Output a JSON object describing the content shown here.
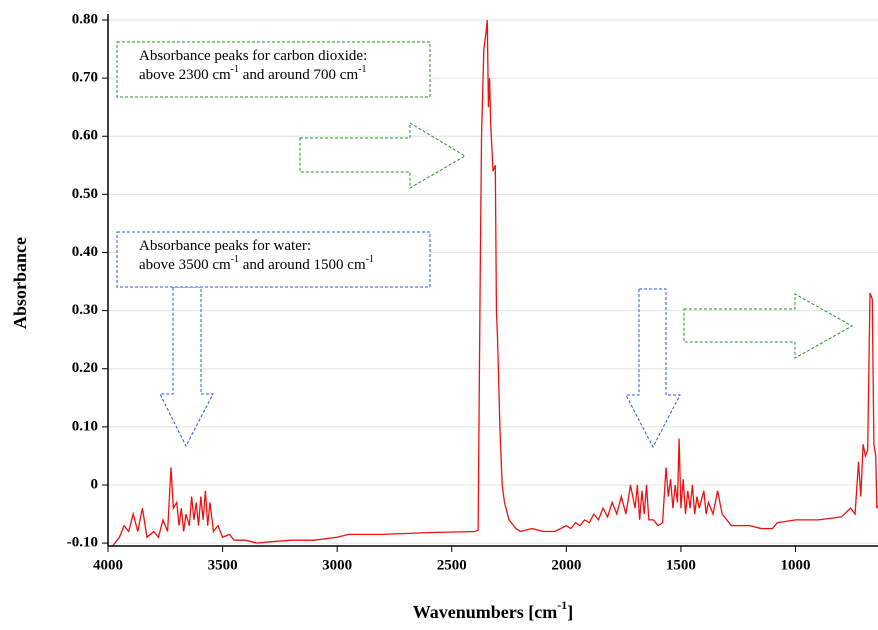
{
  "chart_data": {
    "type": "line",
    "ylabel": "Absorbance",
    "xlabel": [
      "Wavenumbers [cm",
      "-1",
      "]"
    ],
    "annotations": [
      {
        "lines": [
          [
            "Absorbance peaks for carbon dioxide:"
          ],
          [
            "above 2300 cm",
            "-1",
            " and around 700 cm",
            "-1"
          ]
        ],
        "color": "#2e8b2e"
      },
      {
        "lines": [
          [
            "Absorbance peaks for water:"
          ],
          [
            "above 3500 cm",
            "-1",
            " and around 1500 cm",
            "-1"
          ]
        ],
        "color": "#3355dd"
      }
    ],
    "color": "#ee1111",
    "x": [
      4000,
      3980,
      3950,
      3930,
      3910,
      3890,
      3870,
      3850,
      3830,
      3800,
      3780,
      3760,
      3740,
      3725,
      3715,
      3700,
      3690,
      3680,
      3670,
      3660,
      3645,
      3635,
      3625,
      3615,
      3605,
      3595,
      3585,
      3575,
      3565,
      3555,
      3540,
      3520,
      3500,
      3470,
      3450,
      3400,
      3350,
      3300,
      3200,
      3100,
      3000,
      2950,
      2800,
      2600,
      2400,
      2385,
      2375,
      2370,
      2360,
      2350,
      2345,
      2340,
      2335,
      2330,
      2320,
      2310,
      2305,
      2300,
      2290,
      2280,
      2270,
      2250,
      2220,
      2200,
      2150,
      2100,
      2050,
      2000,
      1980,
      1960,
      1940,
      1920,
      1900,
      1880,
      1860,
      1840,
      1820,
      1800,
      1780,
      1760,
      1740,
      1720,
      1700,
      1690,
      1680,
      1670,
      1660,
      1650,
      1640,
      1620,
      1600,
      1580,
      1565,
      1555,
      1545,
      1535,
      1525,
      1515,
      1508,
      1500,
      1490,
      1480,
      1470,
      1460,
      1450,
      1440,
      1430,
      1420,
      1400,
      1390,
      1380,
      1360,
      1340,
      1320,
      1300,
      1280,
      1250,
      1200,
      1150,
      1100,
      1080,
      1000,
      900,
      800,
      760,
      740,
      725,
      715,
      705,
      695,
      685,
      675,
      665,
      658,
      650,
      645,
      640
    ],
    "values": [
      -0.11,
      -0.105,
      -0.09,
      -0.07,
      -0.08,
      -0.05,
      -0.08,
      -0.04,
      -0.09,
      -0.08,
      -0.09,
      -0.06,
      -0.08,
      0.03,
      -0.04,
      -0.03,
      -0.07,
      -0.04,
      -0.08,
      -0.05,
      -0.07,
      -0.02,
      -0.06,
      -0.03,
      -0.07,
      -0.02,
      -0.06,
      -0.01,
      -0.07,
      -0.03,
      -0.08,
      -0.07,
      -0.09,
      -0.085,
      -0.095,
      -0.095,
      -0.1,
      -0.098,
      -0.095,
      -0.095,
      -0.09,
      -0.085,
      -0.085,
      -0.082,
      -0.08,
      -0.078,
      0.4,
      0.6,
      0.75,
      0.78,
      0.8,
      0.65,
      0.7,
      0.62,
      0.54,
      0.55,
      0.3,
      0.25,
      0.1,
      0.0,
      -0.03,
      -0.06,
      -0.075,
      -0.08,
      -0.075,
      -0.08,
      -0.08,
      -0.07,
      -0.075,
      -0.065,
      -0.07,
      -0.06,
      -0.065,
      -0.05,
      -0.06,
      -0.04,
      -0.055,
      -0.03,
      -0.05,
      -0.02,
      -0.05,
      0.0,
      -0.04,
      0.0,
      -0.06,
      -0.01,
      -0.05,
      0.0,
      -0.06,
      -0.06,
      -0.07,
      -0.065,
      0.03,
      -0.02,
      0.01,
      -0.04,
      0.0,
      -0.03,
      0.08,
      -0.04,
      0.01,
      -0.05,
      -0.01,
      -0.04,
      0.0,
      -0.05,
      -0.02,
      -0.04,
      -0.01,
      -0.05,
      -0.03,
      -0.05,
      -0.01,
      -0.05,
      -0.06,
      -0.07,
      -0.07,
      -0.07,
      -0.075,
      -0.075,
      -0.065,
      -0.06,
      -0.06,
      -0.055,
      -0.04,
      -0.05,
      0.04,
      -0.02,
      0.07,
      0.05,
      0.06,
      0.33,
      0.32,
      0.07,
      0.05,
      -0.04,
      -0.035
    ],
    "xlim": [
      4000,
      640
    ],
    "ylim": [
      -0.105,
      0.8
    ],
    "xticks": [
      4000,
      3500,
      3000,
      2500,
      2000,
      1500,
      1000
    ],
    "yticks": [
      {
        "value": -0.1,
        "label": "-0.10"
      },
      0,
      {
        "value": 0.1,
        "label": "0.10"
      },
      {
        "value": 0.2,
        "label": "0.20"
      },
      {
        "value": 0.3,
        "label": "0.30"
      },
      {
        "value": 0.4,
        "label": "0.40"
      },
      {
        "value": 0.5,
        "label": "0.50"
      },
      {
        "value": 0.6,
        "label": "0.60"
      },
      {
        "value": 0.7,
        "label": "0.70"
      },
      {
        "value": 0.8,
        "label": "0.80"
      }
    ],
    "grid": true
  }
}
